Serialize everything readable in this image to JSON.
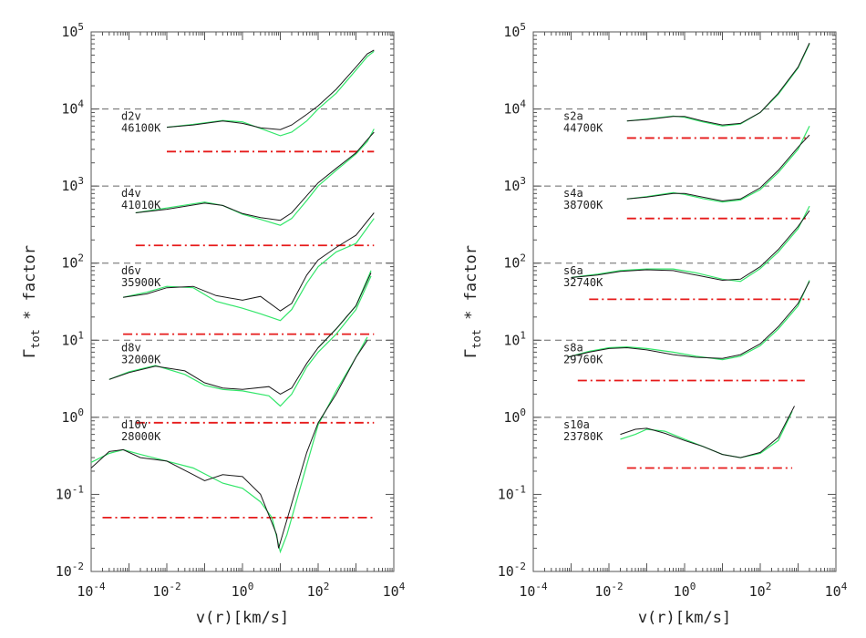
{
  "chart_data": [
    {
      "type": "line",
      "xscale": "log",
      "yscale": "log",
      "xlim": [
        0.0001,
        10000
      ],
      "ylim": [
        0.01,
        100000
      ],
      "xlabel": "v(r)[km/s]",
      "ylabel_main": "Γ",
      "ylabel_sub": "tot",
      "ylabel_rest": " * factor",
      "x_ticks": [
        {
          "exp": "-4"
        },
        {
          "exp": "-2"
        },
        {
          "exp": "0"
        },
        {
          "exp": "2"
        },
        {
          "exp": "4"
        }
      ],
      "y_ticks": [
        {
          "exp": "-2"
        },
        {
          "exp": "-1"
        },
        {
          "exp": "0"
        },
        {
          "exp": "1"
        },
        {
          "exp": "2"
        },
        {
          "exp": "3"
        },
        {
          "exp": "4"
        },
        {
          "exp": "5"
        }
      ],
      "hlines": [
        1,
        10,
        100,
        1000,
        10000
      ],
      "colors": {
        "black": "#1a1a1a",
        "green": "#33e66a",
        "red": "#e61a1a",
        "dash": "#666666"
      },
      "models": [
        {
          "name": "d2v",
          "temp": "46100K",
          "label_at": 7000,
          "red_line": {
            "x": [
              0.01,
              3000
            ],
            "y": 2800
          },
          "black": {
            "x": [
              0.01,
              0.05,
              0.3,
              1,
              3,
              10,
              20,
              50,
              100,
              300,
              1000,
              2000,
              3000
            ],
            "y": [
              5800,
              6200,
              7000,
              6500,
              5700,
              5400,
              6200,
              8500,
              11000,
              18000,
              35000,
              52000,
              58000
            ]
          },
          "green": {
            "x": [
              0.01,
              0.05,
              0.3,
              1,
              3,
              10,
              20,
              50,
              100,
              300,
              1000,
              2000,
              3000
            ],
            "y": [
              5800,
              6300,
              7100,
              6800,
              5600,
              4500,
              5000,
              7000,
              10000,
              16000,
              32000,
              48000,
              56000
            ]
          }
        },
        {
          "name": "d4v",
          "temp": "41010K",
          "label_at": 700,
          "red_line": {
            "x": [
              0.0015,
              3000
            ],
            "y": 170
          },
          "black": {
            "x": [
              0.0015,
              0.01,
              0.1,
              0.3,
              1,
              3,
              10,
              20,
              50,
              100,
              300,
              1000,
              2000,
              3000
            ],
            "y": [
              450,
              500,
              600,
              560,
              440,
              390,
              360,
              450,
              750,
              1100,
              1700,
              2700,
              4000,
              5000
            ]
          },
          "green": {
            "x": [
              0.0015,
              0.01,
              0.1,
              0.3,
              1,
              3,
              10,
              20,
              50,
              100,
              300,
              1000,
              2000,
              3000
            ],
            "y": [
              450,
              520,
              620,
              560,
              430,
              370,
              310,
              380,
              650,
              1000,
              1600,
              2600,
              3800,
              5500
            ]
          }
        },
        {
          "name": "d6v",
          "temp": "35900K",
          "label_at": 70,
          "red_line": {
            "x": [
              0.0007,
              3000
            ],
            "y": 12
          },
          "black": {
            "x": [
              0.0007,
              0.003,
              0.01,
              0.05,
              0.2,
              1,
              3,
              10,
              20,
              50,
              100,
              300,
              1000,
              3000
            ],
            "y": [
              36,
              40,
              48,
              50,
              38,
              33,
              37,
              24,
              30,
              70,
              110,
              160,
              230,
              450
            ]
          },
          "green": {
            "x": [
              0.0007,
              0.003,
              0.01,
              0.05,
              0.2,
              1,
              3,
              10,
              20,
              50,
              100,
              300,
              1000,
              3000
            ],
            "y": [
              36,
              42,
              50,
              48,
              32,
              26,
              22,
              18,
              25,
              55,
              90,
              140,
              180,
              380
            ]
          }
        },
        {
          "name": "d8v",
          "temp": "32000K",
          "label_at": 7,
          "red_line": {
            "x": [
              0.0015,
              3000
            ],
            "y": 0.85
          },
          "black": {
            "x": [
              0.0003,
              0.001,
              0.005,
              0.03,
              0.1,
              0.3,
              1,
              5,
              10,
              20,
              50,
              100,
              300,
              1000,
              2500
            ],
            "y": [
              3.1,
              3.8,
              4.6,
              4,
              2.8,
              2.4,
              2.3,
              2.5,
              2,
              2.4,
              5,
              8,
              14,
              28,
              75
            ]
          },
          "green": {
            "x": [
              0.0003,
              0.001,
              0.005,
              0.03,
              0.1,
              0.3,
              1,
              5,
              10,
              20,
              50,
              100,
              300,
              1000,
              2500
            ],
            "y": [
              3.1,
              3.9,
              4.7,
              3.6,
              2.6,
              2.3,
              2.2,
              1.9,
              1.4,
              2,
              4.5,
              7,
              12,
              25,
              68
            ]
          },
          "green_extra": {
            "x": [
              100,
              300,
              1000,
              2500
            ],
            "y": [
              8,
              14,
              28,
              80
            ]
          }
        },
        {
          "name": "d10v",
          "temp": "28000K",
          "label_at": 0.7,
          "red_line": {
            "x": [
              0.0002,
              3000
            ],
            "y": 0.05
          },
          "black": {
            "x": [
              0.0001,
              0.0003,
              0.0007,
              0.002,
              0.01,
              0.05,
              0.1,
              0.3,
              1,
              3,
              8,
              9,
              50,
              100,
              300,
              1000,
              2000
            ],
            "y": [
              0.22,
              0.36,
              0.38,
              0.3,
              0.27,
              0.18,
              0.15,
              0.18,
              0.17,
              0.1,
              0.03,
              0.02,
              0.35,
              0.85,
              2,
              6,
              10
            ]
          },
          "green": {
            "x": [
              0.0001,
              0.0003,
              0.0007,
              0.002,
              0.01,
              0.05,
              0.3,
              1,
              3,
              6,
              10,
              15,
              30,
              100,
              300,
              1000,
              2000
            ],
            "y": [
              0.26,
              0.34,
              0.38,
              0.33,
              0.27,
              0.22,
              0.14,
              0.12,
              0.08,
              0.05,
              0.018,
              0.03,
              0.1,
              0.8,
              2.2,
              6,
              11
            ]
          }
        }
      ]
    },
    {
      "type": "line",
      "xscale": "log",
      "yscale": "log",
      "xlim": [
        0.0001,
        10000
      ],
      "ylim": [
        0.01,
        100000
      ],
      "xlabel": "v(r)[km/s]",
      "ylabel_main": "Γ",
      "ylabel_sub": "tot",
      "ylabel_rest": " * factor",
      "x_ticks": [
        {
          "exp": "-4"
        },
        {
          "exp": "-2"
        },
        {
          "exp": "0"
        },
        {
          "exp": "2"
        },
        {
          "exp": "4"
        }
      ],
      "y_ticks": [
        {
          "exp": "-2"
        },
        {
          "exp": "-1"
        },
        {
          "exp": "0"
        },
        {
          "exp": "1"
        },
        {
          "exp": "2"
        },
        {
          "exp": "3"
        },
        {
          "exp": "4"
        },
        {
          "exp": "5"
        }
      ],
      "hlines": [
        1,
        10,
        100,
        1000,
        10000
      ],
      "colors": {
        "black": "#1a1a1a",
        "green": "#33e66a",
        "red": "#e61a1a",
        "dash": "#666666"
      },
      "models": [
        {
          "name": "s2a",
          "temp": "44700K",
          "label_at": 7000,
          "red_line": {
            "x": [
              0.03,
              2000
            ],
            "y": 4200
          },
          "black": {
            "x": [
              0.03,
              0.1,
              0.5,
              1,
              3,
              10,
              30,
              100,
              300,
              1000,
              2000
            ],
            "y": [
              7000,
              7300,
              8000,
              8000,
              7000,
              6200,
              6500,
              9000,
              16000,
              35000,
              72000
            ]
          },
          "green": {
            "x": [
              0.03,
              0.1,
              0.5,
              1,
              3,
              10,
              30,
              100,
              300,
              1000,
              2000
            ],
            "y": [
              7000,
              7400,
              8100,
              7800,
              6800,
              6000,
              6400,
              9000,
              15500,
              34000,
              70000
            ]
          }
        },
        {
          "name": "s4a",
          "temp": "38700K",
          "label_at": 700,
          "red_line": {
            "x": [
              0.03,
              2000
            ],
            "y": 380
          },
          "black": {
            "x": [
              0.03,
              0.1,
              0.5,
              1,
              3,
              10,
              30,
              100,
              300,
              1000,
              2000
            ],
            "y": [
              680,
              720,
              800,
              800,
              720,
              640,
              680,
              950,
              1600,
              3200,
              4600
            ]
          },
          "green": {
            "x": [
              0.03,
              0.1,
              0.5,
              1,
              3,
              10,
              30,
              100,
              300,
              1000,
              2000
            ],
            "y": [
              680,
              730,
              820,
              780,
              690,
              620,
              660,
              900,
              1500,
              3000,
              6000
            ]
          }
        },
        {
          "name": "s6a",
          "temp": "32740K",
          "label_at": 70,
          "red_line": {
            "x": [
              0.003,
              2000
            ],
            "y": 34
          },
          "black": {
            "x": [
              0.001,
              0.005,
              0.02,
              0.1,
              0.5,
              2,
              10,
              30,
              100,
              300,
              1000,
              2000
            ],
            "y": [
              65,
              70,
              78,
              82,
              80,
              70,
              60,
              62,
              90,
              150,
              300,
              480
            ]
          },
          "green": {
            "x": [
              0.001,
              0.005,
              0.02,
              0.1,
              0.5,
              2,
              10,
              30,
              100,
              300,
              1000,
              2000
            ],
            "y": [
              65,
              72,
              80,
              84,
              84,
              75,
              62,
              58,
              85,
              140,
              280,
              550
            ]
          }
        },
        {
          "name": "s8a",
          "temp": "29760K",
          "label_at": 7,
          "red_line": {
            "x": [
              0.0015,
              1500
            ],
            "y": 3
          },
          "black": {
            "x": [
              0.0008,
              0.003,
              0.01,
              0.03,
              0.1,
              0.5,
              2,
              10,
              30,
              100,
              300,
              1000,
              2000
            ],
            "y": [
              6,
              7,
              7.8,
              8,
              7.5,
              6.5,
              6,
              5.8,
              6.5,
              9,
              15,
              30,
              58
            ]
          },
          "green": {
            "x": [
              0.0008,
              0.003,
              0.01,
              0.03,
              0.1,
              0.5,
              2,
              10,
              30,
              100,
              300,
              1000,
              2000
            ],
            "y": [
              6,
              7.2,
              8,
              8.2,
              7.8,
              7,
              6.2,
              5.6,
              6.2,
              8.5,
              14,
              28,
              60
            ]
          }
        },
        {
          "name": "s10a",
          "temp": "23780K",
          "label_at": 0.7,
          "red_line": {
            "x": [
              0.03,
              700
            ],
            "y": 0.22
          },
          "black": {
            "x": [
              0.02,
              0.05,
              0.1,
              0.3,
              1,
              3,
              10,
              30,
              100,
              300,
              800
            ],
            "y": [
              0.6,
              0.7,
              0.72,
              0.62,
              0.5,
              0.42,
              0.33,
              0.3,
              0.35,
              0.55,
              1.4
            ]
          },
          "green": {
            "x": [
              0.02,
              0.05,
              0.1,
              0.3,
              1,
              3,
              10,
              30,
              100,
              300,
              700
            ],
            "y": [
              0.52,
              0.6,
              0.7,
              0.66,
              0.52,
              0.42,
              0.33,
              0.3,
              0.34,
              0.5,
              1.2
            ]
          }
        }
      ]
    }
  ]
}
